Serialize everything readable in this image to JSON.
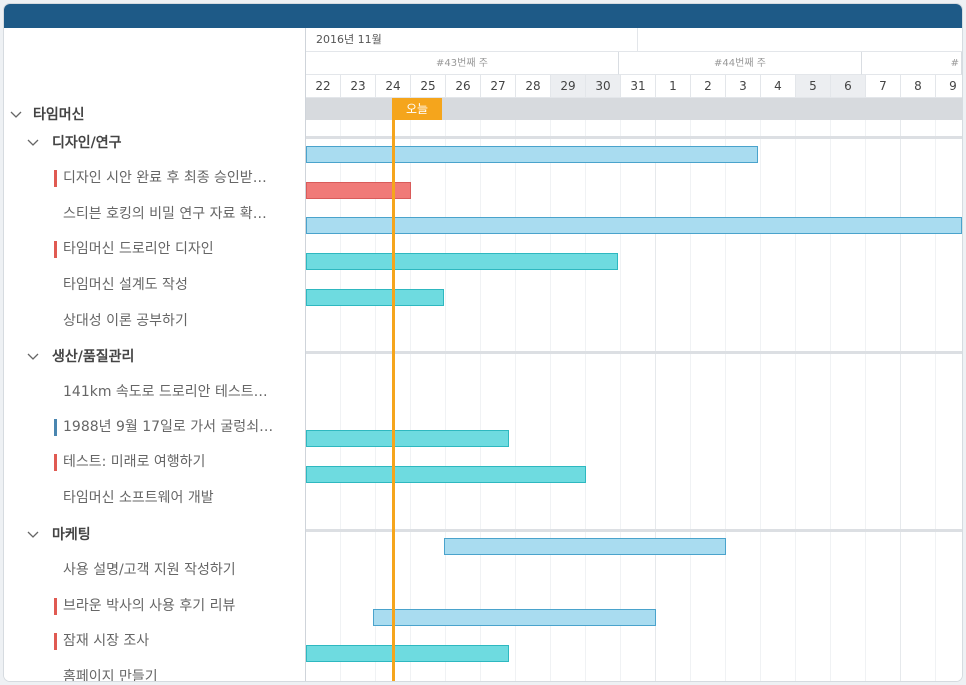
{
  "colors": {
    "header": "#1e5a87",
    "today": "#f5a51c",
    "bar_blue": "#a9dcf0",
    "bar_teal": "#6edbe0",
    "bar_red": "#f07a78",
    "mark_red": "#e05a52",
    "mark_blue": "#4a86b0"
  },
  "timeline": {
    "month_label": "2016년 11월",
    "weeks": [
      "#43번째 주",
      "#44번째 주",
      "#"
    ],
    "days": [
      "22",
      "23",
      "24",
      "25",
      "26",
      "27",
      "28",
      "29",
      "30",
      "31",
      "1",
      "2",
      "3",
      "4",
      "5",
      "6",
      "7",
      "8",
      "9"
    ],
    "weekend_days": [
      7,
      8,
      14,
      15
    ],
    "today_label": "오늘",
    "today_day_index": 2.4
  },
  "tree": {
    "root": "타임머신",
    "groups": [
      {
        "label": "디자인/연구"
      },
      {
        "label": "생산/품질관리"
      },
      {
        "label": "마케팅"
      }
    ],
    "tasks": [
      {
        "label": "디자인 시안 완료 후 최종 승인받…",
        "mark": "red",
        "bar": {
          "start": 0,
          "end": 12.9,
          "color": "blue"
        }
      },
      {
        "label": "스티븐 호킹의 비밀 연구 자료 확…",
        "mark": "",
        "bar": {
          "start": 0,
          "end": 3.0,
          "color": "red"
        }
      },
      {
        "label": "타임머신 드로리안 디자인",
        "mark": "red",
        "bar": {
          "start": 0,
          "end": 19,
          "color": "blue"
        }
      },
      {
        "label": "타임머신 설계도 작성",
        "mark": "",
        "bar": {
          "start": 0,
          "end": 8.9,
          "color": "teal"
        }
      },
      {
        "label": "상대성 이론 공부하기",
        "mark": "",
        "bar": {
          "start": 0,
          "end": 3.95,
          "color": "teal"
        }
      },
      {
        "label": "141km 속도로 드로리안 테스트…",
        "mark": "",
        "bar": null
      },
      {
        "label": "1988년 9월 17일로 가서 굴렁쇠…",
        "mark": "blue",
        "bar": null
      },
      {
        "label": "테스트: 미래로 여행하기",
        "mark": "red",
        "bar": {
          "start": 0,
          "end": 5.8,
          "color": "teal"
        }
      },
      {
        "label": "타임머신 소프트웨어 개발",
        "mark": "",
        "bar": {
          "start": 0,
          "end": 8.0,
          "color": "teal"
        }
      },
      {
        "label": "사용 설명/고객 지원 작성하기",
        "mark": "",
        "bar": {
          "start": 3.95,
          "end": 12.0,
          "color": "blue"
        }
      },
      {
        "label": "브라운 박사의 사용 후기 리뷰",
        "mark": "red",
        "bar": null
      },
      {
        "label": "잠재 시장 조사",
        "mark": "red",
        "bar": {
          "start": 1.9,
          "end": 10.0,
          "color": "blue"
        }
      },
      {
        "label": "홈페이지 만들기",
        "mark": "",
        "bar": {
          "start": 0,
          "end": 5.8,
          "color": "teal"
        }
      }
    ]
  }
}
